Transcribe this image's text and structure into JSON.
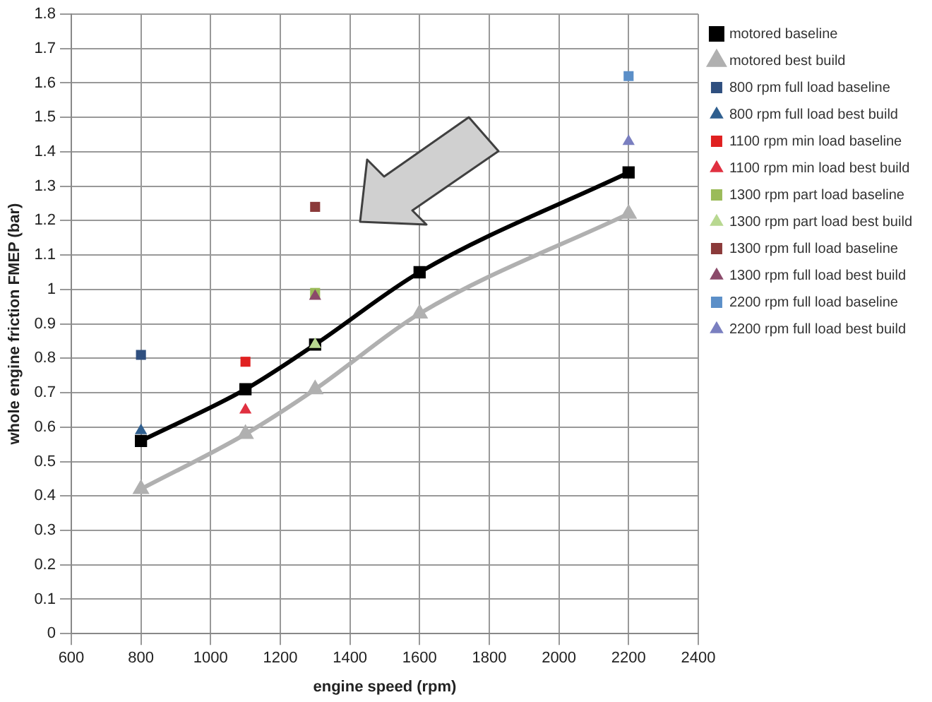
{
  "chart_data": {
    "type": "line",
    "xlabel": "engine speed (rpm)",
    "ylabel": "whole engine friction FMEP (bar)",
    "xlim": [
      600,
      2400
    ],
    "xticks": [
      600,
      800,
      1000,
      1200,
      1400,
      1600,
      1800,
      2000,
      2200,
      2400
    ],
    "ylim": [
      0,
      1.8
    ],
    "yticks": [
      0,
      0.1,
      0.2,
      0.3,
      0.4,
      0.5,
      0.6,
      0.7,
      0.8,
      0.9,
      1,
      1.1,
      1.2,
      1.3,
      1.4,
      1.5,
      1.6,
      1.7,
      1.8
    ],
    "grid": true,
    "legend": "right",
    "series": [
      {
        "name": "motored baseline",
        "type": "line",
        "color": "#000000",
        "marker": "square",
        "x": [
          800,
          1100,
          1300,
          1600,
          2200
        ],
        "values": [
          0.56,
          0.71,
          0.84,
          1.05,
          1.34
        ]
      },
      {
        "name": "motored best build",
        "type": "line",
        "color": "#b0b0b0",
        "marker": "triangle",
        "x": [
          800,
          1100,
          1300,
          1600,
          2200
        ],
        "values": [
          0.42,
          0.58,
          0.71,
          0.93,
          1.22
        ]
      },
      {
        "name": "800 rpm full load baseline",
        "type": "scatter",
        "color": "#2f4f7f",
        "marker": "square",
        "x": [
          800
        ],
        "values": [
          0.81
        ]
      },
      {
        "name": "800 rpm full load best build",
        "type": "scatter",
        "color": "#2f5f8f",
        "marker": "triangle",
        "x": [
          800
        ],
        "values": [
          0.59
        ]
      },
      {
        "name": "1100 rpm min load baseline",
        "type": "scatter",
        "color": "#e02020",
        "marker": "square",
        "x": [
          1100
        ],
        "values": [
          0.79
        ]
      },
      {
        "name": "1100 rpm min load best build",
        "type": "scatter",
        "color": "#e03040",
        "marker": "triangle",
        "x": [
          1100
        ],
        "values": [
          0.65
        ]
      },
      {
        "name": "1300 rpm part load baseline",
        "type": "scatter",
        "color": "#9bbb59",
        "marker": "square",
        "x": [
          1300
        ],
        "values": [
          0.99
        ]
      },
      {
        "name": "1300 rpm part load best build",
        "type": "scatter",
        "color": "#b8d890",
        "marker": "triangle",
        "x": [
          1300
        ],
        "values": [
          0.84
        ]
      },
      {
        "name": "1300 rpm full load baseline",
        "type": "scatter",
        "color": "#8b3a3a",
        "marker": "square",
        "x": [
          1300
        ],
        "values": [
          1.24
        ]
      },
      {
        "name": "1300 rpm full load best build",
        "type": "scatter",
        "color": "#8b4a6a",
        "marker": "triangle",
        "x": [
          1300
        ],
        "values": [
          0.98
        ]
      },
      {
        "name": "2200 rpm full load baseline",
        "type": "scatter",
        "color": "#5b8fc8",
        "marker": "square",
        "x": [
          2200
        ],
        "values": [
          1.62
        ]
      },
      {
        "name": "2200 rpm full load best build",
        "type": "scatter",
        "color": "#7a7fc0",
        "marker": "triangle",
        "x": [
          2200
        ],
        "values": [
          1.43
        ]
      }
    ]
  }
}
